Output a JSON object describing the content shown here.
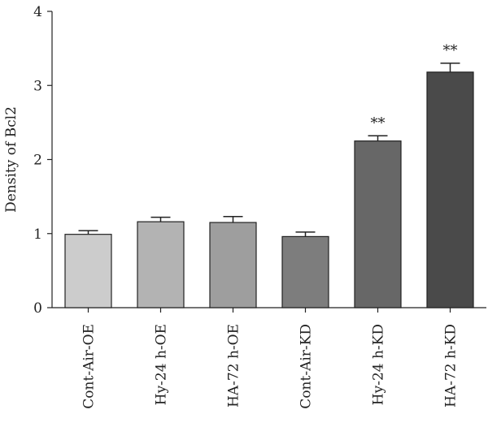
{
  "chart_data": {
    "type": "bar",
    "title": "",
    "xlabel": "",
    "ylabel": "Density of Bcl2",
    "ylim": [
      0,
      4
    ],
    "yticks": [
      "0",
      "1",
      "2",
      "3",
      "4"
    ],
    "grid": false,
    "categories": [
      "Cont-Air-OE",
      "Hy-24 h-OE",
      "HA-72 h-OE",
      "Cont-Air-KD",
      "Hy-24 h-KD",
      "HA-72 h-KD"
    ],
    "values": [
      0.99,
      1.16,
      1.15,
      0.96,
      2.25,
      3.18
    ],
    "errors": [
      0.05,
      0.06,
      0.08,
      0.06,
      0.07,
      0.12
    ],
    "annotations": [
      "",
      "",
      "",
      "",
      "**",
      "**"
    ],
    "colors": [
      "#cccccc",
      "#b3b3b3",
      "#9e9e9e",
      "#7d7d7d",
      "#676767",
      "#4a4a4a"
    ]
  }
}
